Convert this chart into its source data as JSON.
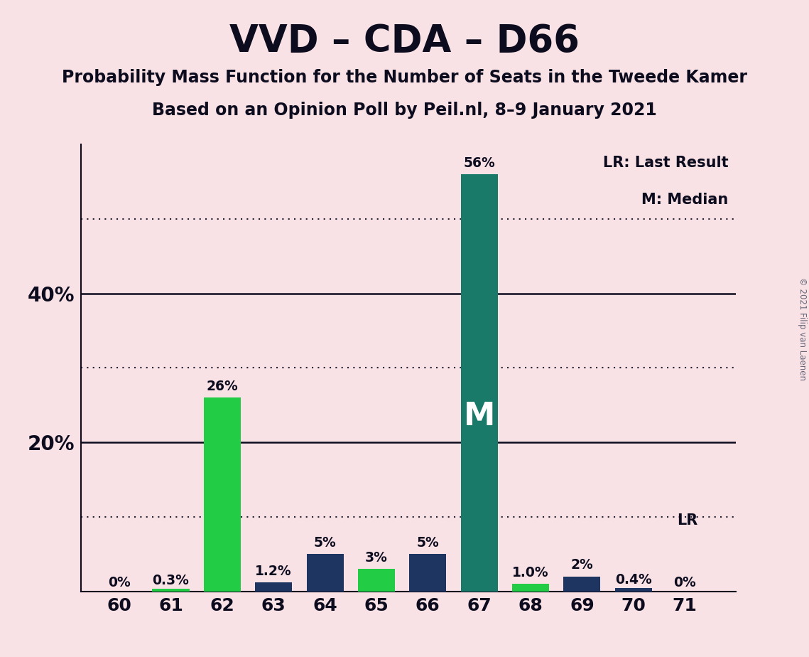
{
  "title": "VVD – CDA – D66",
  "subtitle1": "Probability Mass Function for the Number of Seats in the Tweede Kamer",
  "subtitle2": "Based on an Opinion Poll by Peil.nl, 8–9 January 2021",
  "copyright": "© 2021 Filip van Laenen",
  "seats": [
    60,
    61,
    62,
    63,
    64,
    65,
    66,
    67,
    68,
    69,
    70,
    71
  ],
  "probabilities": [
    0.0,
    0.3,
    26.0,
    1.2,
    5.0,
    3.0,
    5.0,
    56.0,
    1.0,
    2.0,
    0.4,
    0.0
  ],
  "labels": [
    "0%",
    "0.3%",
    "26%",
    "1.2%",
    "5%",
    "3%",
    "5%",
    "56%",
    "1.0%",
    "2%",
    "0.4%",
    "0%"
  ],
  "bar_colors": [
    "#22cc44",
    "#22cc44",
    "#22cc44",
    "#1e3461",
    "#1e3461",
    "#22cc44",
    "#1e3461",
    "#1a7a6a",
    "#22cc44",
    "#1e3461",
    "#1e3461",
    "#22cc44"
  ],
  "median_seat": 67,
  "lr_seat": 71,
  "background_color": "#f9e2e6",
  "ylim": [
    0,
    60
  ],
  "dotted_lines": [
    10,
    30,
    50
  ],
  "solid_lines": [
    20,
    40
  ],
  "ytick_positions": [
    20,
    40
  ],
  "ytick_labels": [
    "20%",
    "40%"
  ],
  "title_color": "#0c0c1e",
  "label_color_white": "#ffffff",
  "bar_width": 0.72,
  "legend_lr": "LR: Last Result",
  "legend_m": "M: Median",
  "lr_label": "LR"
}
